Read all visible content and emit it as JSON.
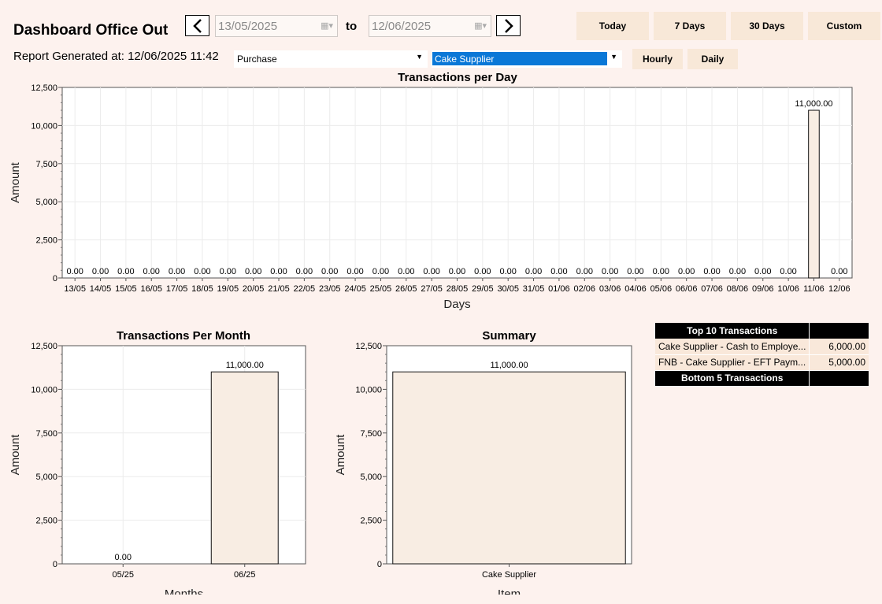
{
  "window": {
    "title": "Dashboard Office Out"
  },
  "header": {
    "report_generated": "Report Generated at: 12/06/2025 11:42",
    "from_date": "13/05/2025",
    "to_label": "to",
    "to_date": "12/06/2025"
  },
  "range_buttons": {
    "today": "Today",
    "seven_days": "7 Days",
    "thirty_days": "30 Days",
    "custom": "Custom"
  },
  "filters": {
    "type_value": "Purchase",
    "supplier_value": "Cake Supplier"
  },
  "interval_buttons": {
    "hourly": "Hourly",
    "daily": "Daily"
  },
  "colors": {
    "background": "#fdf2ee",
    "bar_fill": "#f8ede3",
    "selected_blue": "#0a78d7",
    "button_fill": "#f8e8d8"
  },
  "chart_data": [
    {
      "type": "bar",
      "title": "Transactions per Day",
      "xlabel": "Days",
      "ylabel": "Amount",
      "ylim": [
        0,
        12500
      ],
      "yticks": [
        "0",
        "2,500",
        "5,000",
        "7,500",
        "10,000",
        "12,500"
      ],
      "categories": [
        "13/05",
        "14/05",
        "15/05",
        "16/05",
        "17/05",
        "18/05",
        "19/05",
        "20/05",
        "21/05",
        "22/05",
        "23/05",
        "24/05",
        "25/05",
        "26/05",
        "27/05",
        "28/05",
        "29/05",
        "30/05",
        "31/05",
        "01/06",
        "02/06",
        "03/06",
        "04/06",
        "05/06",
        "06/06",
        "07/06",
        "08/06",
        "09/06",
        "10/06",
        "11/06",
        "12/06"
      ],
      "values": [
        0,
        0,
        0,
        0,
        0,
        0,
        0,
        0,
        0,
        0,
        0,
        0,
        0,
        0,
        0,
        0,
        0,
        0,
        0,
        0,
        0,
        0,
        0,
        0,
        0,
        0,
        0,
        0,
        0,
        11000,
        0
      ],
      "labels": [
        "0.00",
        "0.00",
        "0.00",
        "0.00",
        "0.00",
        "0.00",
        "0.00",
        "0.00",
        "0.00",
        "0.00",
        "0.00",
        "0.00",
        "0.00",
        "0.00",
        "0.00",
        "0.00",
        "0.00",
        "0.00",
        "0.00",
        "0.00",
        "0.00",
        "0.00",
        "0.00",
        "0.00",
        "0.00",
        "0.00",
        "0.00",
        "0.00",
        "0.00",
        "11,000.00",
        "0.00"
      ],
      "grid": true
    },
    {
      "type": "bar",
      "title": "Transactions Per Month",
      "xlabel": "Months",
      "ylabel": "Amount",
      "ylim": [
        0,
        12500
      ],
      "yticks": [
        "0",
        "2,500",
        "5,000",
        "7,500",
        "10,000",
        "12,500"
      ],
      "categories": [
        "05/25",
        "06/25"
      ],
      "values": [
        0,
        11000
      ],
      "labels": [
        "0.00",
        "11,000.00"
      ],
      "grid": true
    },
    {
      "type": "bar",
      "title": "Summary",
      "xlabel": "Item",
      "ylabel": "Amount",
      "ylim": [
        0,
        12500
      ],
      "yticks": [
        "0",
        "2,500",
        "5,000",
        "7,500",
        "10,000",
        "12,500"
      ],
      "categories": [
        "Cake Supplier"
      ],
      "values": [
        11000
      ],
      "labels": [
        "11,000.00"
      ],
      "grid": false
    }
  ],
  "transactions": {
    "top_header": "Top 10 Transactions",
    "top_rows": [
      {
        "name": "Cake Supplier - Cash to Employe...",
        "amount": "6,000.00"
      },
      {
        "name": "FNB - Cake Supplier - EFT Paym...",
        "amount": "5,000.00"
      }
    ],
    "bottom_header": "Bottom 5 Transactions"
  }
}
